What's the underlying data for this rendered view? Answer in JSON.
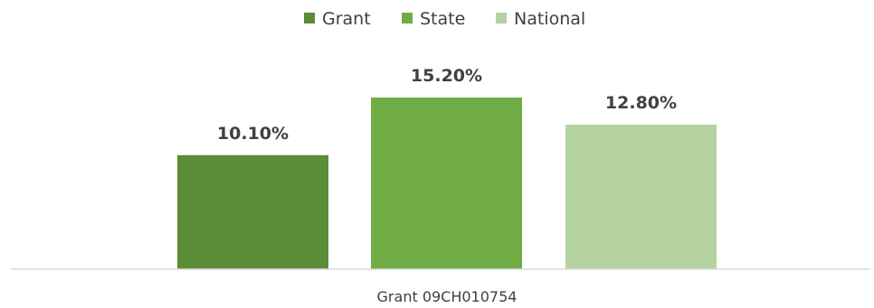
{
  "chart_data": {
    "type": "bar",
    "categories": [
      "Grant 09CH010754"
    ],
    "series": [
      {
        "name": "Grant",
        "values": [
          10.1
        ],
        "label": "10.10%",
        "color": "#5b8c36"
      },
      {
        "name": "State",
        "values": [
          15.2
        ],
        "label": "15.20%",
        "color": "#70ad47"
      },
      {
        "name": "National",
        "values": [
          12.8
        ],
        "label": "12.80%",
        "color": "#b5d2a1"
      }
    ],
    "title": "",
    "xlabel": "",
    "ylabel": "",
    "ylim": [
      0,
      16.5
    ],
    "grid": false,
    "legend_position": "top-center",
    "axis_color": "#d9d9d9"
  }
}
